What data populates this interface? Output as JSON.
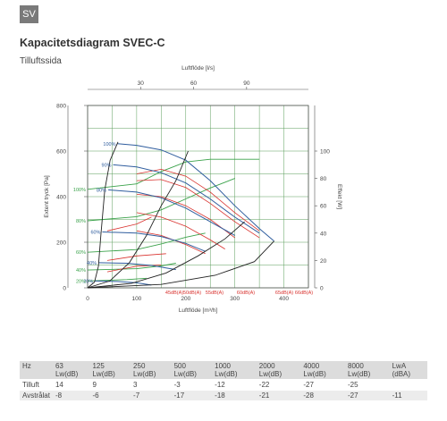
{
  "badge": "SV",
  "title": "Kapacitetsdiagram SVEC-C",
  "subtitle": "Tilluftssida",
  "colors": {
    "grid": "#5a9e5a",
    "blue": "#2f5d9e",
    "red": "#d9322e",
    "green": "#3aa24a",
    "black": "#222222",
    "annot_red": "#d9322e",
    "annot_blue": "#2f5d9e",
    "annot_green": "#3aa24a"
  },
  "chart_data": {
    "type": "line",
    "xlabel": "Luftflöde [m³/h]",
    "ylabel": "Extent tryck [Pa]",
    "top_xlabel": "Luftflöde [l/s]",
    "right_ylabel": "Effekt [W]",
    "xlim": [
      0,
      450
    ],
    "ylim": [
      0,
      800
    ],
    "top_xlim": [
      0,
      125
    ],
    "right_ylim": [
      0,
      133.33
    ],
    "x_ticks": [
      "0",
      "100",
      "200",
      "300",
      "400"
    ],
    "y_ticks": [
      "0",
      "200",
      "400",
      "600",
      "800"
    ],
    "top_ticks": [
      "30",
      "60",
      "90"
    ],
    "right_ticks": [
      "0",
      "20",
      "40",
      "60",
      "80",
      "100"
    ],
    "system_curves": [
      [
        [
          0,
          0
        ],
        [
          14,
          25
        ],
        [
          22,
          95
        ],
        [
          27,
          230
        ],
        [
          35,
          430
        ],
        [
          46,
          560
        ],
        [
          62,
          640
        ]
      ],
      [
        [
          0,
          0
        ],
        [
          45,
          30
        ],
        [
          85,
          110
        ],
        [
          120,
          230
        ],
        [
          150,
          360
        ],
        [
          180,
          470
        ],
        [
          205,
          600
        ]
      ],
      [
        [
          0,
          0
        ],
        [
          90,
          20
        ],
        [
          160,
          65
        ],
        [
          225,
          140
        ],
        [
          280,
          215
        ],
        [
          320,
          290
        ]
      ],
      [
        [
          0,
          0
        ],
        [
          150,
          15
        ],
        [
          260,
          55
        ],
        [
          340,
          115
        ],
        [
          380,
          205
        ]
      ]
    ],
    "fan_curves": [
      {
        "label": "100%",
        "points": [
          [
            61,
            632
          ],
          [
            100,
            625
          ],
          [
            150,
            605
          ],
          [
            200,
            560
          ],
          [
            250,
            470
          ],
          [
            300,
            360
          ],
          [
            350,
            260
          ],
          [
            380,
            205
          ]
        ]
      },
      {
        "label": "90%",
        "points": [
          [
            52,
            540
          ],
          [
            100,
            530
          ],
          [
            150,
            505
          ],
          [
            200,
            460
          ],
          [
            250,
            390
          ],
          [
            300,
            310
          ],
          [
            350,
            240
          ]
        ]
      },
      {
        "label": "80%",
        "points": [
          [
            42,
            430
          ],
          [
            100,
            420
          ],
          [
            150,
            395
          ],
          [
            200,
            350
          ],
          [
            250,
            290
          ],
          [
            300,
            230
          ]
        ]
      },
      {
        "label": "60%",
        "points": [
          [
            30,
            245
          ],
          [
            100,
            240
          ],
          [
            150,
            225
          ],
          [
            200,
            195
          ],
          [
            240,
            160
          ]
        ]
      },
      {
        "label": "40%",
        "points": [
          [
            22,
            110
          ],
          [
            80,
            108
          ],
          [
            130,
            98
          ],
          [
            180,
            80
          ]
        ]
      },
      {
        "label": "20%",
        "points": [
          [
            15,
            30
          ],
          [
            60,
            28
          ],
          [
            100,
            22
          ],
          [
            130,
            12
          ]
        ]
      }
    ],
    "red_curves": [
      [
        [
          100,
          250
        ],
        [
          150,
          230
        ],
        [
          200,
          190
        ],
        [
          240,
          150
        ]
      ],
      [
        [
          100,
          330
        ],
        [
          150,
          310
        ],
        [
          200,
          270
        ],
        [
          250,
          210
        ],
        [
          280,
          170
        ]
      ],
      [
        [
          100,
          410
        ],
        [
          150,
          400
        ],
        [
          200,
          360
        ],
        [
          250,
          300
        ],
        [
          300,
          220
        ]
      ],
      [
        [
          100,
          470
        ],
        [
          150,
          475
        ],
        [
          200,
          440
        ],
        [
          250,
          370
        ],
        [
          300,
          290
        ],
        [
          350,
          220
        ]
      ],
      [
        [
          100,
          500
        ],
        [
          150,
          520
        ],
        [
          200,
          490
        ],
        [
          250,
          420
        ],
        [
          300,
          330
        ],
        [
          350,
          250
        ]
      ],
      [
        [
          40,
          250
        ],
        [
          100,
          280
        ],
        [
          130,
          310
        ]
      ],
      [
        [
          40,
          120
        ],
        [
          100,
          140
        ],
        [
          160,
          150
        ]
      ],
      [
        [
          40,
          70
        ],
        [
          100,
          95
        ],
        [
          150,
          100
        ]
      ]
    ],
    "power_curves": [
      {
        "label": "100%",
        "points": [
          [
            0,
            72
          ],
          [
            100,
            76
          ],
          [
            150,
            85
          ],
          [
            200,
            92
          ],
          [
            250,
            94
          ],
          [
            300,
            94
          ],
          [
            350,
            94
          ]
        ]
      },
      {
        "label": "80%",
        "points": [
          [
            0,
            49
          ],
          [
            100,
            52
          ],
          [
            150,
            57
          ],
          [
            200,
            65
          ],
          [
            250,
            73
          ],
          [
            300,
            80
          ]
        ]
      },
      {
        "label": "60%",
        "points": [
          [
            0,
            26
          ],
          [
            100,
            28
          ],
          [
            150,
            32
          ],
          [
            200,
            37
          ],
          [
            240,
            40
          ]
        ]
      },
      {
        "label": "40%",
        "points": [
          [
            0,
            13
          ],
          [
            100,
            14
          ],
          [
            150,
            16
          ],
          [
            180,
            18
          ]
        ]
      },
      {
        "label": "20%",
        "points": [
          [
            0,
            5
          ],
          [
            80,
            6
          ],
          [
            120,
            7
          ]
        ]
      }
    ],
    "series_labels_blue": [
      "100%",
      "90%",
      "80%",
      "60%",
      "40%",
      "20%"
    ],
    "series_labels_green": [
      "100%",
      "80%",
      "60%",
      "40%",
      "20%"
    ],
    "bottom_labels": [
      "45dB(A)",
      "50dB(A)",
      "55dB(A)",
      "60dB(A)",
      "65dB(A)",
      "66dB(A)"
    ],
    "grid": true
  },
  "table": {
    "header": [
      "Hz",
      "63 Lw(dB)",
      "125 Lw(dB)",
      "250 Lw(dB)",
      "500 Lw(dB)",
      "1000 Lw(dB)",
      "2000 Lw(dB)",
      "4000 Lw(dB)",
      "8000 Lw(dB)",
      "LwA (dBA)"
    ],
    "rows": [
      [
        "Tilluft",
        "14",
        "9",
        "3",
        "-3",
        "-12",
        "-22",
        "-27",
        "-25",
        ""
      ],
      [
        "Avstrålat",
        "-8",
        "-6",
        "-7",
        "-17",
        "-18",
        "-21",
        "-28",
        "-27",
        "-11"
      ]
    ]
  }
}
